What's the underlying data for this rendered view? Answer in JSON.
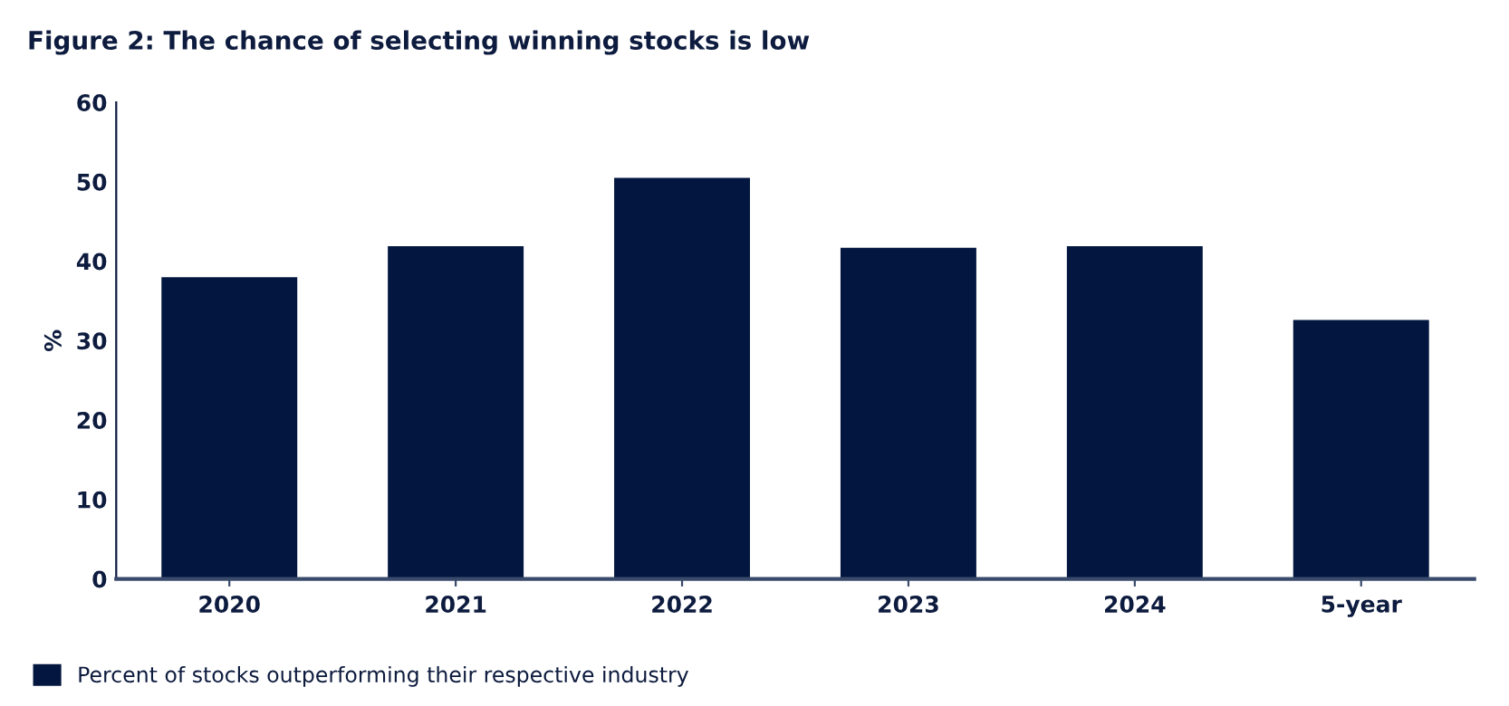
{
  "chart_data": {
    "type": "bar",
    "title": "Figure 2: The chance of selecting winning stocks is low",
    "ylabel": "%",
    "categories": [
      "2020",
      "2021",
      "2022",
      "2023",
      "2024",
      "5-year"
    ],
    "series": [
      {
        "name": "Percent of stocks outperforming their respective industry",
        "color": "#02163f",
        "values": [
          38.0,
          41.9,
          50.5,
          41.7,
          41.9,
          32.6
        ]
      }
    ],
    "ylim": [
      0,
      60
    ],
    "yticks": [
      0,
      10,
      20,
      30,
      40,
      50,
      60
    ],
    "grid": false,
    "legend": "bottom left"
  }
}
